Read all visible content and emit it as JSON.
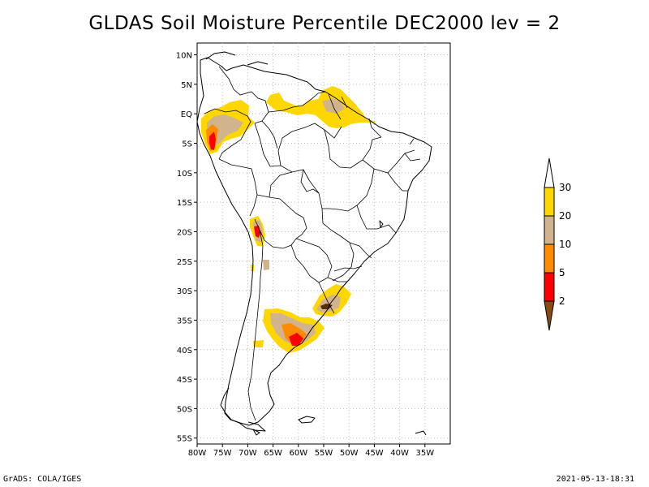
{
  "title": "GLDAS Soil Moisture Percentile DEC2000 lev = 2",
  "footer_left": "GrADS: COLA/IGES",
  "footer_right": "2021-05-13-18:31",
  "map": {
    "lon_range": [
      -80,
      -30
    ],
    "lat_range": [
      -56,
      12
    ],
    "x_ticks": [
      "80W",
      "75W",
      "70W",
      "65W",
      "60W",
      "55W",
      "50W",
      "45W",
      "40W",
      "35W"
    ],
    "y_ticks": [
      "10N",
      "5N",
      "EQ",
      "5S",
      "10S",
      "15S",
      "20S",
      "25S",
      "30S",
      "35S",
      "40S",
      "45S",
      "50S",
      "55S"
    ],
    "gridlines": true,
    "grid_color": "#bfbfbf"
  },
  "legend": {
    "labels": [
      "2",
      "5",
      "10",
      "20",
      "30"
    ],
    "colors": {
      "below_2": "#8a4b13",
      "2_to_5": "#ff0000",
      "5_to_10": "#ff8c00",
      "10_to_20": "#d2b48c",
      "20_to_30": "#ffd700",
      "above_30": "#ffffff"
    }
  }
}
